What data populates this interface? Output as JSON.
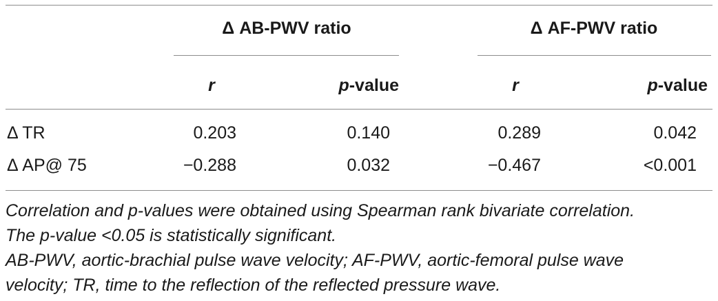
{
  "table": {
    "group_headers": [
      "Δ AB-PWV ratio",
      "Δ AF-PWV ratio"
    ],
    "sub_headers": [
      {
        "main": "r",
        "suffix": ""
      },
      {
        "main": "p",
        "suffix": "-value"
      },
      {
        "main": "r",
        "suffix": ""
      },
      {
        "main": "p",
        "suffix": "-value"
      }
    ],
    "rows": [
      {
        "label": "Δ TR",
        "values": [
          "0.203",
          "0.140",
          "0.289",
          "0.042"
        ]
      },
      {
        "label": "Δ AP@ 75",
        "values": [
          "−0.288",
          "0.032",
          "−0.467",
          "<0.001"
        ]
      }
    ]
  },
  "footnotes": [
    "Correlation and p-values were obtained using Spearman rank bivariate correlation.",
    "The p-value <0.05 is statistically significant.",
    "AB-PWV, aortic-brachial pulse wave velocity; AF-PWV, aortic-femoral pulse wave",
    "velocity; TR, time to the reflection of the reflected pressure wave."
  ]
}
